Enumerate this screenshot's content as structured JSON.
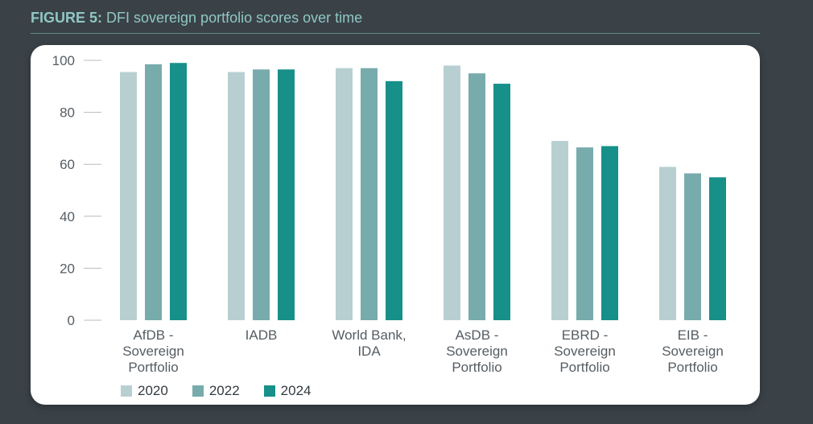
{
  "figure": {
    "title_lead": "FIGURE 5:",
    "title_rest": " DFI sovereign portfolio scores over time"
  },
  "chart_data": {
    "type": "bar",
    "title": "",
    "xlabel": "",
    "ylabel": "",
    "ylim": [
      0,
      100
    ],
    "yticks": [
      0,
      20,
      40,
      60,
      80,
      100
    ],
    "grid": false,
    "legend_position": "bottom-left",
    "categories": [
      [
        "AfDB -",
        "Sovereign",
        "Portfolio"
      ],
      [
        "IADB"
      ],
      [
        "World Bank,",
        "IDA"
      ],
      [
        "AsDB -",
        "Sovereign",
        "Portfolio"
      ],
      [
        "EBRD -",
        "Sovereign",
        "Portfolio"
      ],
      [
        "EIB -",
        "Sovereign",
        "Portfolio"
      ]
    ],
    "series": [
      {
        "name": "2020",
        "color": "#b8cfd1",
        "values": [
          95.5,
          95.5,
          97,
          98,
          69,
          59
        ]
      },
      {
        "name": "2022",
        "color": "#78abac",
        "values": [
          98.5,
          96.5,
          97,
          95,
          66.5,
          56.5
        ]
      },
      {
        "name": "2024",
        "color": "#179089",
        "values": [
          99,
          96.5,
          92,
          91,
          67,
          55
        ]
      }
    ]
  }
}
